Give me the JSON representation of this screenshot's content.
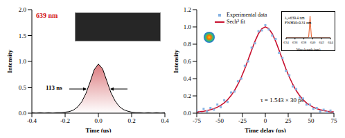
{
  "chart_data": [
    {
      "type": "area",
      "xlabel": "Time (µs)",
      "ylabel": "Intensity",
      "color": "#000000",
      "annotations": [
        "639 nm",
        "113 ns"
      ],
      "x": [
        -0.4,
        -0.375,
        -0.35,
        -0.325,
        -0.3,
        -0.275,
        -0.25,
        -0.225,
        -0.2,
        -0.175,
        -0.15,
        -0.125,
        -0.1,
        -0.075,
        -0.05,
        -0.025,
        0,
        0.025,
        0.05,
        0.075,
        0.1,
        0.125,
        0.15,
        0.175,
        0.2,
        0.225,
        0.25,
        0.275,
        0.3,
        0.325,
        0.35,
        0.375,
        0.4
      ],
      "values": [
        0.01,
        0,
        0.01,
        0,
        0.01,
        0,
        0.01,
        0.01,
        0.02,
        0.03,
        0.06,
        0.12,
        0.22,
        0.38,
        0.6,
        0.84,
        0.95,
        0.86,
        0.63,
        0.4,
        0.24,
        0.13,
        0.07,
        0.04,
        0.02,
        0.01,
        0.01,
        0,
        0.01,
        0,
        0.01,
        0,
        0.01
      ],
      "xlim": [
        -0.4,
        0.4
      ],
      "xticks": [
        -0.4,
        -0.2,
        {
          "value": 0,
          "label": "0.0"
        },
        0.2,
        0.4
      ],
      "ylim": [
        0,
        2
      ],
      "yticks": [
        {
          "value": 0,
          "label": "0.0"
        },
        0.5,
        {
          "value": 1,
          "label": "1.0"
        },
        1.5,
        {
          "value": 2,
          "label": "2.0"
        }
      ]
    },
    {
      "type": "scatter",
      "xlabel": "Time delay (ps)",
      "ylabel": "Intensity",
      "legend": "top left",
      "annotations": [
        "τ = 1.543 × 30 ps"
      ],
      "x": [
        -75,
        -71.25,
        -67.5,
        -63.75,
        -60,
        -56.25,
        -52.5,
        -48.75,
        -45,
        -41.25,
        -37.5,
        -33.75,
        -30,
        -26.25,
        -22.5,
        -18.75,
        -15,
        -11.25,
        -7.5,
        -3.75,
        0,
        3.75,
        7.5,
        11.25,
        15,
        18.75,
        22.5,
        26.25,
        30,
        33.75,
        37.5,
        41.25,
        45,
        48.75,
        52.5,
        56.25,
        60,
        63.75,
        67.5,
        71.25,
        75
      ],
      "series": [
        {
          "name": "Experimental data",
          "type": "scatter",
          "marker": "square",
          "color": "#87b3e3",
          "values": [
            0.03,
            0,
            0.05,
            0.02,
            0.06,
            0.04,
            0.1,
            0.07,
            0.15,
            0.13,
            0.24,
            0.25,
            0.37,
            0.4,
            0.55,
            0.6,
            0.76,
            0.81,
            0.95,
            0.96,
            1.02,
            0.97,
            0.9,
            0.86,
            0.7,
            0.64,
            0.49,
            0.44,
            0.31,
            0.28,
            0.18,
            0.17,
            0.1,
            0.1,
            0.05,
            0.06,
            0.02,
            0.04,
            0.01,
            0.03,
            0
          ]
        },
        {
          "name": "Sech² fit",
          "type": "line",
          "color": "#c8102e",
          "values": [
            0.013,
            0.017,
            0.022,
            0.03,
            0.04,
            0.052,
            0.069,
            0.091,
            0.119,
            0.156,
            0.203,
            0.262,
            0.334,
            0.418,
            0.514,
            0.621,
            0.73,
            0.835,
            0.922,
            0.98,
            1,
            0.98,
            0.922,
            0.835,
            0.73,
            0.621,
            0.514,
            0.418,
            0.334,
            0.262,
            0.203,
            0.156,
            0.119,
            0.091,
            0.069,
            0.052,
            0.04,
            0.03,
            0.022,
            0.017,
            0.013
          ]
        }
      ],
      "xlim": [
        -75,
        75
      ],
      "xticks": [
        -75,
        -50,
        -25,
        0,
        25,
        50,
        75
      ],
      "ylim": [
        0,
        1.2
      ],
      "yticks": [
        {
          "value": 0,
          "label": "0.0"
        },
        0.2,
        0.4,
        0.6,
        0.8,
        {
          "value": 1,
          "label": "1.0"
        },
        1.2
      ]
    },
    {
      "type": "line",
      "xlabel": "Wavelength (nm)",
      "color": "#e8501a",
      "tick_labels": "x",
      "annotations": [
        "λ₀=639.4 nm",
        "FWHM=0.31 nm"
      ],
      "x": [
        634,
        638.8,
        639.1,
        639.25,
        639.4,
        639.55,
        639.7,
        640,
        644
      ],
      "values": [
        0,
        0,
        0.05,
        0.5,
        1,
        0.5,
        0.05,
        0,
        0
      ],
      "xlim": [
        634,
        644
      ],
      "xticks": [
        634,
        636,
        638,
        640,
        642,
        644
      ],
      "ylim": [
        0,
        1.1
      ]
    }
  ]
}
